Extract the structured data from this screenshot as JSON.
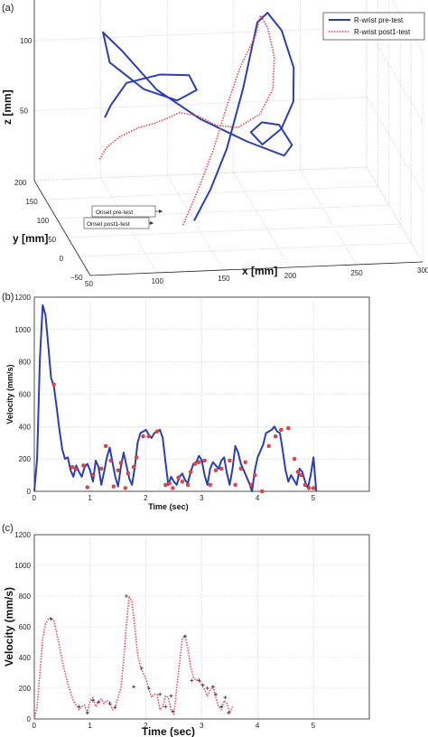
{
  "chart_data": [
    {
      "panel": "(a)",
      "type": "line",
      "legend": [
        "R-wrist pre-test",
        "R-wrist post1-test"
      ],
      "legend_placement": "top-right",
      "xlabel": "x [mm]",
      "ylabel": "y [mm]",
      "zlabel": "z [mm]",
      "xlim": [
        50,
        300
      ],
      "ylim": [
        -50,
        200
      ],
      "zlim": [
        0,
        150
      ],
      "x_ticks": [
        "50",
        "100",
        "150",
        "200",
        "250",
        "300"
      ],
      "y_ticks": [
        "200",
        "150",
        "100",
        "50",
        "0",
        "−50"
      ],
      "z_ticks": [
        "50",
        "100"
      ],
      "annotations": [
        "Onset pre-test",
        "Onset post1-test"
      ],
      "colors": {
        "pre": "#2b3fb0",
        "post": "#e8454f"
      },
      "series": [
        {
          "name": "R-wrist pre-test",
          "style": "solid",
          "points": [
            [
              150,
              80,
              0
            ],
            [
              165,
              95,
              18
            ],
            [
              178,
              100,
              45
            ],
            [
              192,
              110,
              85
            ],
            [
              200,
              120,
              110
            ],
            [
              206,
              130,
              126
            ],
            [
              214,
              132,
              132
            ],
            [
              224,
              128,
              120
            ],
            [
              230,
              110,
              98
            ],
            [
              226,
              88,
              80
            ],
            [
              214,
              70,
              66
            ],
            [
              198,
              60,
              58
            ],
            [
              190,
              64,
              66
            ],
            [
              200,
              74,
              70
            ],
            [
              214,
              80,
              66
            ],
            [
              222,
              70,
              54
            ],
            [
              214,
              58,
              50
            ],
            [
              190,
              80,
              55
            ],
            [
              160,
              110,
              64
            ],
            [
              132,
              140,
              78
            ],
            [
              110,
              165,
              100
            ],
            [
              98,
              178,
              110
            ],
            [
              102,
              172,
              90
            ],
            [
              124,
              150,
              76
            ],
            [
              146,
              132,
              72
            ],
            [
              160,
              128,
              80
            ],
            [
              156,
              138,
              88
            ],
            [
              136,
              150,
              86
            ],
            [
              114,
              168,
              76
            ],
            [
              104,
              178,
              58
            ],
            [
              100,
              182,
              48
            ]
          ]
        },
        {
          "name": "R-wrist post1-test",
          "style": "dotted",
          "points": [
            [
              140,
              70,
              0
            ],
            [
              155,
              90,
              20
            ],
            [
              168,
              100,
              45
            ],
            [
              180,
              112,
              72
            ],
            [
              192,
              124,
              96
            ],
            [
              205,
              132,
              116
            ],
            [
              210,
              140,
              128
            ],
            [
              215,
              138,
              120
            ],
            [
              218,
              125,
              102
            ],
            [
              214,
              108,
              84
            ],
            [
              202,
              95,
              70
            ],
            [
              185,
              92,
              62
            ],
            [
              170,
              100,
              62
            ],
            [
              158,
              112,
              66
            ],
            [
              146,
              122,
              66
            ],
            [
              138,
              130,
              60
            ],
            [
              130,
              140,
              54
            ],
            [
              120,
              152,
              48
            ],
            [
              108,
              166,
              38
            ],
            [
              100,
              176,
              28
            ],
            [
              96,
              182,
              18
            ]
          ]
        }
      ]
    },
    {
      "panel": "(b)",
      "type": "line",
      "xlabel": "Time (sec)",
      "ylabel": "Velocity (mm/s)",
      "xlim": [
        0,
        6
      ],
      "ylim": [
        0,
        1200
      ],
      "x_ticks": [
        "0",
        "1",
        "2",
        "3",
        "4",
        "5"
      ],
      "y_ticks": [
        "0",
        "200",
        "400",
        "600",
        "800",
        "1000",
        "1200"
      ],
      "grid": true,
      "colors": {
        "line": "#2b3fb0",
        "markers": "#e8454f"
      },
      "series": [
        {
          "name": "",
          "x": [
            0,
            0.05,
            0.1,
            0.15,
            0.2,
            0.25,
            0.3,
            0.35,
            0.4,
            0.45,
            0.5,
            0.55,
            0.6,
            0.65,
            0.7,
            0.75,
            0.8,
            0.85,
            0.9,
            0.95,
            1.0,
            1.05,
            1.1,
            1.15,
            1.2,
            1.25,
            1.3,
            1.35,
            1.4,
            1.45,
            1.5,
            1.55,
            1.6,
            1.65,
            1.7,
            1.75,
            1.8,
            1.85,
            1.9,
            1.95,
            2.0,
            2.05,
            2.1,
            2.15,
            2.2,
            2.25,
            2.3,
            2.35,
            2.4,
            2.45,
            2.5,
            2.55,
            2.6,
            2.65,
            2.7,
            2.75,
            2.8,
            2.85,
            2.9,
            2.95,
            3.0,
            3.05,
            3.1,
            3.15,
            3.2,
            3.25,
            3.3,
            3.35,
            3.4,
            3.45,
            3.5,
            3.55,
            3.6,
            3.65,
            3.7,
            3.75,
            3.8,
            3.85,
            3.9,
            3.95,
            4.0,
            4.05,
            4.1,
            4.15,
            4.2,
            4.25,
            4.3,
            4.35,
            4.4,
            4.45,
            4.5,
            4.55,
            4.6,
            4.65,
            4.7,
            4.75,
            4.8,
            4.85,
            4.9,
            4.95,
            5.0,
            5.05
          ],
          "values": [
            0,
            200,
            820,
            1150,
            1090,
            900,
            700,
            650,
            520,
            380,
            260,
            200,
            210,
            130,
            90,
            160,
            120,
            90,
            150,
            170,
            130,
            60,
            190,
            150,
            40,
            120,
            210,
            270,
            180,
            90,
            30,
            150,
            240,
            160,
            80,
            40,
            150,
            300,
            360,
            370,
            380,
            350,
            330,
            360,
            370,
            380,
            330,
            180,
            40,
            90,
            60,
            40,
            90,
            110,
            70,
            50,
            120,
            170,
            180,
            220,
            190,
            100,
            40,
            140,
            180,
            160,
            140,
            190,
            210,
            110,
            40,
            140,
            280,
            240,
            170,
            130,
            90,
            50,
            0,
            130,
            210,
            250,
            290,
            360,
            370,
            380,
            400,
            370,
            360,
            250,
            130,
            60,
            100,
            70,
            40,
            140,
            120,
            60,
            20,
            100,
            210,
            0
          ]
        },
        {
          "name": "",
          "points": [
            [
              0.68,
              150
            ],
            [
              0.74,
              140
            ],
            [
              0.88,
              160
            ],
            [
              0.95,
              25
            ],
            [
              1.05,
              100
            ],
            [
              1.2,
              140
            ],
            [
              1.28,
              280
            ],
            [
              1.37,
              190
            ],
            [
              1.42,
              30
            ],
            [
              1.5,
              130
            ],
            [
              1.55,
              175
            ],
            [
              1.63,
              20
            ],
            [
              1.68,
              110
            ],
            [
              1.78,
              150
            ],
            [
              1.83,
              210
            ],
            [
              1.95,
              340
            ],
            [
              2.05,
              340
            ],
            [
              2.2,
              370
            ],
            [
              2.35,
              40
            ],
            [
              2.42,
              50
            ],
            [
              2.48,
              20
            ],
            [
              2.58,
              85
            ],
            [
              2.65,
              60
            ],
            [
              2.75,
              40
            ],
            [
              2.8,
              120
            ],
            [
              2.88,
              170
            ],
            [
              2.95,
              180
            ],
            [
              3.05,
              190
            ],
            [
              3.15,
              40
            ],
            [
              3.25,
              130
            ],
            [
              3.35,
              140
            ],
            [
              3.5,
              190
            ],
            [
              3.6,
              40
            ],
            [
              3.7,
              140
            ],
            [
              3.78,
              180
            ],
            [
              3.88,
              40
            ],
            [
              3.95,
              100
            ],
            [
              4.08,
              0
            ],
            [
              4.2,
              280
            ],
            [
              4.32,
              340
            ],
            [
              4.42,
              380
            ],
            [
              4.55,
              390
            ],
            [
              4.66,
              200
            ],
            [
              4.72,
              120
            ],
            [
              4.78,
              100
            ],
            [
              4.85,
              40
            ],
            [
              4.92,
              20
            ],
            [
              5.0,
              20
            ],
            [
              0.35,
              660
            ]
          ]
        }
      ]
    },
    {
      "panel": "(c)",
      "type": "line",
      "xlabel": "Time (sec)",
      "ylabel": "Velocity (mm/s)",
      "xlim": [
        0,
        6
      ],
      "ylim": [
        0,
        1200
      ],
      "x_ticks": [
        "0",
        "1",
        "2",
        "3",
        "4",
        "5"
      ],
      "y_ticks": [
        "0",
        "200",
        "400",
        "600",
        "800",
        "1000",
        "1200"
      ],
      "grid": true,
      "colors": {
        "line": "#e8454f",
        "markers": "#333333"
      },
      "series": [
        {
          "name": "",
          "x": [
            0,
            0.05,
            0.1,
            0.15,
            0.2,
            0.25,
            0.3,
            0.35,
            0.4,
            0.45,
            0.5,
            0.55,
            0.6,
            0.65,
            0.7,
            0.75,
            0.8,
            0.85,
            0.9,
            0.95,
            1.0,
            1.05,
            1.1,
            1.15,
            1.2,
            1.25,
            1.3,
            1.35,
            1.4,
            1.45,
            1.5,
            1.55,
            1.6,
            1.65,
            1.7,
            1.75,
            1.8,
            1.85,
            1.9,
            1.95,
            2.0,
            2.05,
            2.1,
            2.15,
            2.2,
            2.25,
            2.3,
            2.35,
            2.4,
            2.45,
            2.5,
            2.55,
            2.6,
            2.65,
            2.7,
            2.75,
            2.8,
            2.85,
            2.9,
            2.95,
            3.0,
            3.05,
            3.1,
            3.15,
            3.2,
            3.25,
            3.3,
            3.35,
            3.4,
            3.45,
            3.5,
            3.55
          ],
          "values": [
            0,
            80,
            300,
            520,
            620,
            650,
            660,
            640,
            560,
            470,
            380,
            300,
            230,
            170,
            120,
            90,
            60,
            80,
            90,
            40,
            120,
            140,
            80,
            110,
            130,
            100,
            120,
            110,
            60,
            80,
            140,
            200,
            380,
            620,
            800,
            760,
            600,
            420,
            340,
            300,
            260,
            200,
            140,
            160,
            160,
            60,
            80,
            150,
            140,
            60,
            30,
            200,
            360,
            520,
            540,
            460,
            340,
            270,
            250,
            260,
            220,
            190,
            150,
            190,
            210,
            140,
            80,
            60,
            120,
            100,
            40,
            80
          ]
        },
        {
          "name": "",
          "points": [
            [
              0.3,
              650
            ],
            [
              0.8,
              80
            ],
            [
              0.95,
              40
            ],
            [
              1.05,
              120
            ],
            [
              1.15,
              110
            ],
            [
              1.35,
              100
            ],
            [
              1.45,
              75
            ],
            [
              1.65,
              800
            ],
            [
              1.78,
              210
            ],
            [
              1.92,
              330
            ],
            [
              2.05,
              200
            ],
            [
              2.25,
              160
            ],
            [
              2.35,
              80
            ],
            [
              2.45,
              150
            ],
            [
              2.48,
              50
            ],
            [
              2.7,
              540
            ],
            [
              2.82,
              250
            ],
            [
              2.95,
              250
            ],
            [
              3.02,
              220
            ],
            [
              3.1,
              200
            ],
            [
              3.2,
              210
            ],
            [
              3.25,
              160
            ],
            [
              3.35,
              80
            ],
            [
              3.42,
              140
            ],
            [
              3.48,
              40
            ]
          ]
        }
      ]
    }
  ]
}
